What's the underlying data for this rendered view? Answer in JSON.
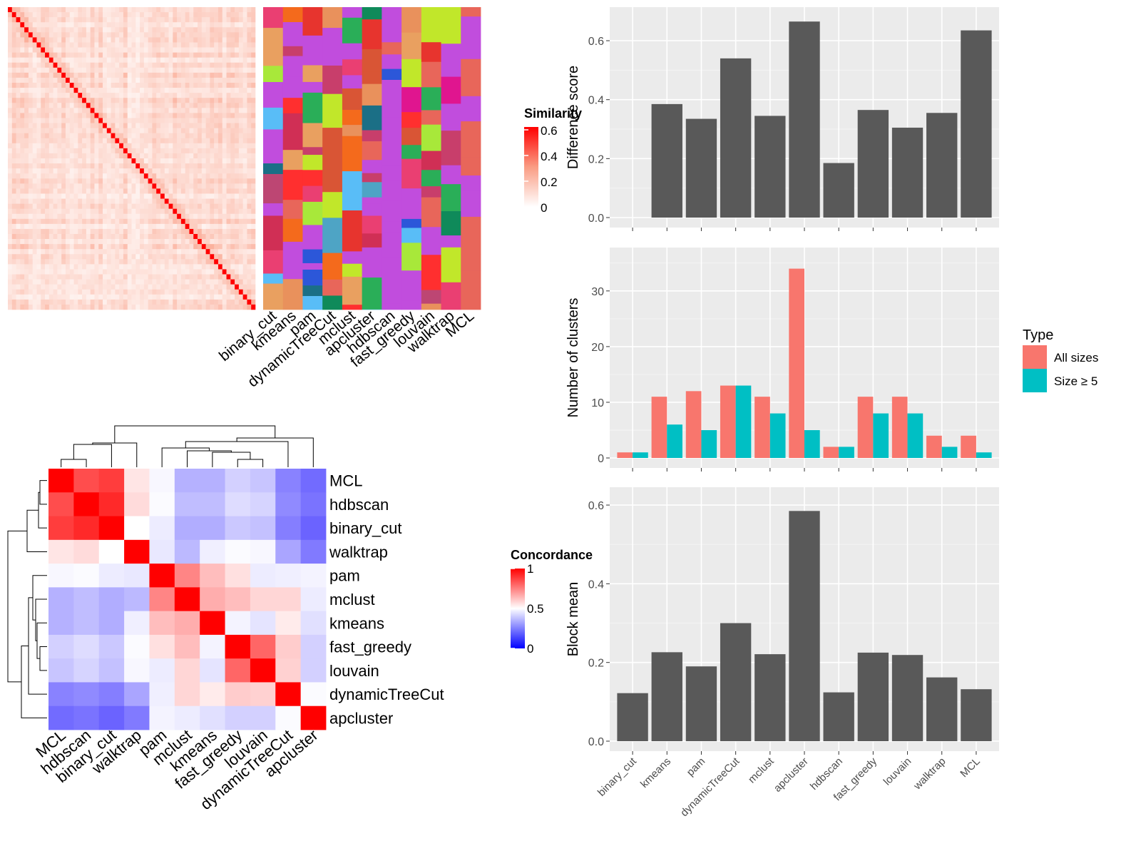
{
  "methods_a": [
    "binary_cut",
    "kmeans",
    "pam",
    "dynamicTreeCut",
    "mclust",
    "apcluster",
    "hdbscan",
    "fast_greedy",
    "louvain",
    "walktrap",
    "MCL"
  ],
  "methods_b": [
    "MCL",
    "hdbscan",
    "binary_cut",
    "walktrap",
    "pam",
    "mclust",
    "kmeans",
    "fast_greedy",
    "louvain",
    "dynamicTreeCut",
    "apcluster"
  ],
  "similarity_legend": {
    "title": "Similarity",
    "ticks": [
      "0",
      "0.2",
      "0.4",
      "0.6"
    ]
  },
  "concordance_legend": {
    "title": "Concordance",
    "ticks": [
      "0",
      "0.5",
      "1"
    ]
  },
  "type_legend": {
    "title": "Type",
    "entries": [
      "All sizes",
      "Size ≥ 5"
    ]
  },
  "colors": {
    "bar_dark": "#595959",
    "all_sizes": "#F8766D",
    "size5": "#00BFC4",
    "panel_bg": "#EBEBEB",
    "heat_red": "#FF0000",
    "heat_blue": "#0000FF",
    "cluster_bg": "#C14DDD"
  },
  "chart_data": [
    {
      "type": "heatmap",
      "title": "",
      "legend_title": "Similarity",
      "legend_ticks": [
        "0",
        "0.2",
        "0.4",
        "0.6"
      ],
      "note": "similarity matrix between items; diagonal high (~0.6)"
    },
    {
      "type": "heatmap",
      "title": "",
      "columns": [
        "binary_cut",
        "kmeans",
        "pam",
        "dynamicTreeCut",
        "mclust",
        "apcluster",
        "hdbscan",
        "fast_greedy",
        "louvain",
        "walktrap",
        "MCL"
      ],
      "note": "cluster membership per method"
    },
    {
      "type": "bar",
      "categories": [
        "binary_cut",
        "kmeans",
        "pam",
        "dynamicTreeCut",
        "mclust",
        "apcluster",
        "hdbscan",
        "fast_greedy",
        "louvain",
        "walktrap",
        "MCL"
      ],
      "values": [
        0,
        0.385,
        0.335,
        0.54,
        0.345,
        0.665,
        0.185,
        0.365,
        0.305,
        0.355,
        0.635
      ],
      "ylabel": "Difference score",
      "ylim": [
        0,
        0.68
      ],
      "yticks": [
        "0.0",
        "0.2",
        "0.4",
        "0.6"
      ]
    },
    {
      "type": "bar",
      "categories": [
        "binary_cut",
        "kmeans",
        "pam",
        "dynamicTreeCut",
        "mclust",
        "apcluster",
        "hdbscan",
        "fast_greedy",
        "louvain",
        "walktrap",
        "MCL"
      ],
      "series": [
        {
          "name": "All sizes",
          "values": [
            1,
            11,
            12,
            13,
            11,
            34,
            2,
            11,
            11,
            4,
            4
          ]
        },
        {
          "name": "Size ≥ 5",
          "values": [
            1,
            6,
            5,
            13,
            8,
            5,
            2,
            8,
            8,
            2,
            1
          ]
        }
      ],
      "ylabel": "Number of clusters",
      "ylim": [
        0,
        36
      ],
      "yticks": [
        "0",
        "10",
        "20",
        "30"
      ],
      "legend_title": "Type"
    },
    {
      "type": "bar",
      "categories": [
        "binary_cut",
        "kmeans",
        "pam",
        "dynamicTreeCut",
        "mclust",
        "apcluster",
        "hdbscan",
        "fast_greedy",
        "louvain",
        "walktrap",
        "MCL"
      ],
      "values": [
        0.122,
        0.226,
        0.19,
        0.3,
        0.221,
        0.585,
        0.124,
        0.225,
        0.219,
        0.162,
        0.132
      ],
      "ylabel": "Block mean",
      "ylim": [
        0,
        0.62
      ],
      "yticks": [
        "0.0",
        "0.2",
        "0.4",
        "0.6"
      ]
    },
    {
      "type": "heatmap",
      "rows": [
        "MCL",
        "hdbscan",
        "binary_cut",
        "walktrap",
        "pam",
        "mclust",
        "kmeans",
        "fast_greedy",
        "louvain",
        "dynamicTreeCut",
        "apcluster"
      ],
      "columns": [
        "MCL",
        "hdbscan",
        "binary_cut",
        "walktrap",
        "pam",
        "mclust",
        "kmeans",
        "fast_greedy",
        "louvain",
        "dynamicTreeCut",
        "apcluster"
      ],
      "values": [
        [
          1.0,
          0.85,
          0.88,
          0.55,
          0.48,
          0.3,
          0.3,
          0.38,
          0.35,
          0.18,
          0.12
        ],
        [
          0.85,
          1.0,
          0.92,
          0.57,
          0.49,
          0.33,
          0.33,
          0.41,
          0.39,
          0.2,
          0.14
        ],
        [
          0.88,
          0.92,
          1.0,
          0.5,
          0.45,
          0.29,
          0.29,
          0.36,
          0.34,
          0.17,
          0.1
        ],
        [
          0.55,
          0.57,
          0.5,
          1.0,
          0.44,
          0.32,
          0.46,
          0.49,
          0.48,
          0.27,
          0.16
        ],
        [
          0.48,
          0.49,
          0.45,
          0.44,
          1.0,
          0.74,
          0.63,
          0.56,
          0.45,
          0.46,
          0.47
        ],
        [
          0.3,
          0.33,
          0.29,
          0.32,
          0.74,
          1.0,
          0.66,
          0.63,
          0.58,
          0.58,
          0.45
        ],
        [
          0.3,
          0.33,
          0.29,
          0.46,
          0.63,
          0.66,
          1.0,
          0.47,
          0.43,
          0.54,
          0.42
        ],
        [
          0.38,
          0.41,
          0.36,
          0.49,
          0.56,
          0.63,
          0.47,
          1.0,
          0.8,
          0.6,
          0.38
        ],
        [
          0.35,
          0.39,
          0.34,
          0.48,
          0.45,
          0.58,
          0.43,
          0.8,
          1.0,
          0.59,
          0.38
        ],
        [
          0.18,
          0.2,
          0.17,
          0.27,
          0.46,
          0.58,
          0.54,
          0.6,
          0.59,
          1.0,
          0.49
        ],
        [
          0.12,
          0.14,
          0.1,
          0.16,
          0.47,
          0.45,
          0.42,
          0.38,
          0.38,
          0.49,
          1.0
        ]
      ],
      "legend_title": "Concordance",
      "legend_ticks": [
        "0",
        "0.5",
        "1"
      ],
      "range": [
        0,
        1
      ]
    }
  ]
}
